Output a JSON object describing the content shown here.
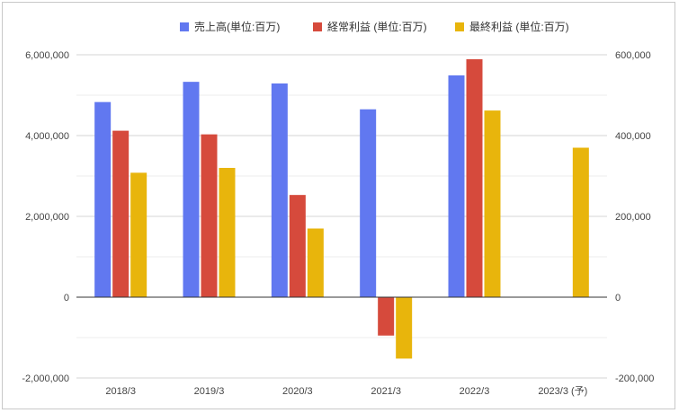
{
  "chart_data": {
    "type": "bar",
    "categories": [
      "2018/3",
      "2019/3",
      "2020/3",
      "2021/3",
      "2022/3",
      "2023/3 (予)"
    ],
    "series": [
      {
        "name": "売上高(単位:百万)",
        "axis": "left",
        "color": "#6178f0",
        "values": [
          4830000,
          5330000,
          5290000,
          4650000,
          5490000,
          null
        ]
      },
      {
        "name": "経常利益 (単位:百万)",
        "axis": "right",
        "color": "#d64a3c",
        "values": [
          412000,
          403000,
          253000,
          -95000,
          589000,
          null
        ]
      },
      {
        "name": "最終利益 (単位:百万)",
        "axis": "right",
        "color": "#e8b50c",
        "values": [
          308000,
          320000,
          170000,
          -152000,
          462000,
          370000
        ]
      }
    ],
    "left_axis": {
      "ylim": [
        -2000000,
        6000000
      ],
      "tick_values": [
        6000000,
        4000000,
        2000000,
        0,
        -2000000
      ],
      "tick_labels": [
        "6,000,000",
        "4,000,000",
        "2,000,000",
        "0",
        "-2,000,000"
      ]
    },
    "right_axis": {
      "ylim": [
        -200000,
        600000
      ],
      "tick_values": [
        600000,
        400000,
        200000,
        0,
        -200000
      ],
      "tick_labels": [
        "600,000",
        "400,000",
        "200,000",
        "0",
        "-200,000"
      ]
    },
    "grid": true,
    "legend": "top-center"
  }
}
